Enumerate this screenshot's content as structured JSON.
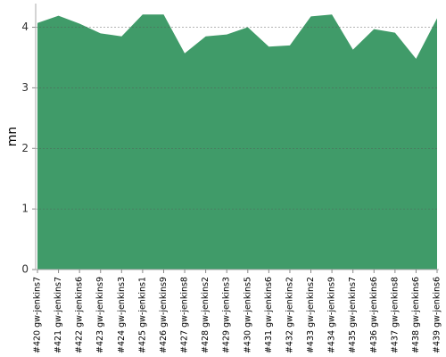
{
  "chart_data": {
    "type": "area",
    "y_label": "mn",
    "categories": [
      "#420 gw-jenkins7",
      "#421 gw-jenkins7",
      "#422 gw-jenkins6",
      "#423 gw-jenkins9",
      "#424 gw-jenkins3",
      "#425 gw-jenkins1",
      "#426 gw-jenkins9",
      "#427 gw-jenkins8",
      "#428 gw-jenkins2",
      "#429 gw-jenkins3",
      "#430 gw-jenkins5",
      "#431 gw-jenkins6",
      "#432 gw-jenkins2",
      "#433 gw-jenkins2",
      "#434 gw-jenkins9",
      "#435 gw-jenkins7",
      "#436 gw-jenkins6",
      "#437 gw-jenkins8",
      "#438 gw-jenkins6",
      "#439 gw-jenkins6"
    ],
    "values": [
      4.07,
      4.19,
      4.06,
      3.9,
      3.85,
      4.21,
      4.21,
      3.57,
      3.85,
      3.88,
      4.0,
      3.68,
      3.7,
      4.18,
      4.21,
      3.63,
      3.97,
      3.91,
      3.48,
      4.15
    ],
    "color": "#409b69",
    "ylim": [
      0,
      4.45
    ],
    "yticks": [
      0,
      1,
      2,
      3,
      4
    ],
    "grid": true
  }
}
